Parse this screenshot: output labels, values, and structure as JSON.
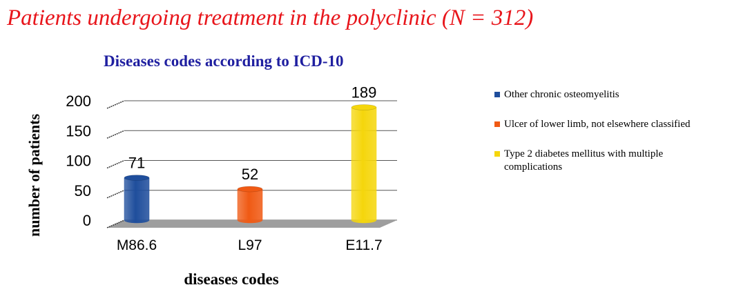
{
  "headline": "Patients undergoing treatment in the polyclinic (N = 312)",
  "chart_data": {
    "type": "bar",
    "title": "Diseases codes according to ICD-10",
    "xlabel": "diseases codes",
    "ylabel": "number of patients",
    "categories": [
      "M86.6",
      "L97",
      "E11.7"
    ],
    "values": [
      71,
      52,
      189
    ],
    "colors": [
      "#1f4e9c",
      "#f05a14",
      "#f5d60c"
    ],
    "ylim": [
      0,
      200
    ],
    "yticks": [
      0,
      50,
      100,
      150,
      200
    ],
    "legend": [
      "Other chronic osteomyelitis",
      "Ulcer of lower limb, not elsewhere classified",
      "Type 2 diabetes mellitus with multiple complications"
    ],
    "legend_position": "right",
    "grid": true
  }
}
